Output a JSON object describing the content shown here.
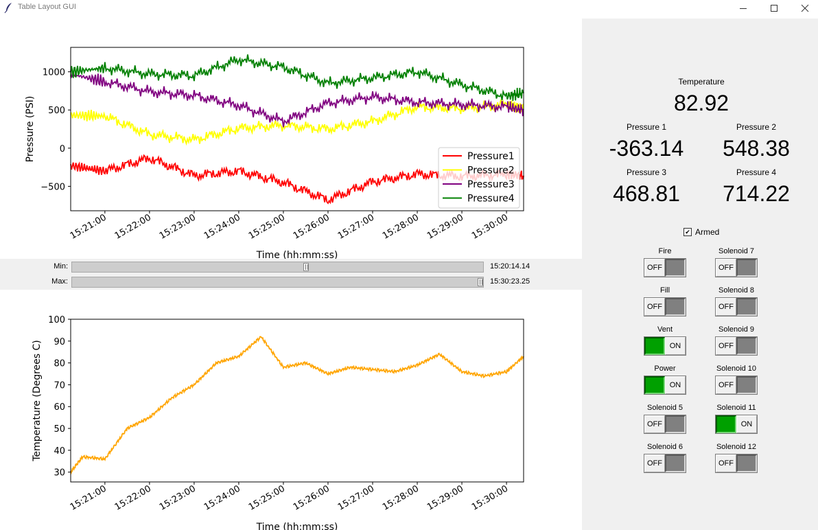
{
  "window": {
    "title": "Table Layout GUI"
  },
  "pressure_chart": {
    "chart_data": {
      "type": "line",
      "xlabel": "Time (hh:mm:ss)",
      "ylabel": "Pressure (PSI)",
      "xlim": [
        "15:20:14",
        "15:30:23"
      ],
      "ylim": [
        -820,
        1320
      ],
      "x_ticks": [
        "15:21:00",
        "15:22:00",
        "15:23:00",
        "15:24:00",
        "15:25:00",
        "15:26:00",
        "15:27:00",
        "15:28:00",
        "15:29:00",
        "15:30:00"
      ],
      "y_ticks": [
        1000,
        500,
        0,
        -500
      ],
      "grid": false,
      "legend": "lower-right",
      "x": [
        "15:20:14",
        "15:21:00",
        "15:22:00",
        "15:23:00",
        "15:24:00",
        "15:25:00",
        "15:26:00",
        "15:27:00",
        "15:28:00",
        "15:29:00",
        "15:30:00",
        "15:30:23"
      ],
      "series": [
        {
          "name": "Pressure1",
          "color": "#ff0000",
          "values": [
            -230,
            -300,
            -130,
            -360,
            -300,
            -450,
            -680,
            -440,
            -340,
            -370,
            -340,
            -360
          ]
        },
        {
          "name": "Pressure2",
          "color": "#ffff00",
          "values": [
            430,
            420,
            180,
            110,
            260,
            300,
            250,
            350,
            540,
            520,
            570,
            520
          ]
        },
        {
          "name": "Pressure3",
          "color": "#800080",
          "values": [
            970,
            870,
            740,
            690,
            560,
            350,
            590,
            670,
            600,
            570,
            540,
            500
          ]
        },
        {
          "name": "Pressure4",
          "color": "#008000",
          "values": [
            1000,
            1050,
            970,
            950,
            1160,
            1060,
            850,
            920,
            1000,
            830,
            680,
            720
          ]
        }
      ]
    }
  },
  "temperature_chart": {
    "chart_data": {
      "type": "line",
      "xlabel": "Time (hh:mm:ss)",
      "ylabel": "Temperature (Degrees C)",
      "xlim": [
        "15:20:14",
        "15:30:23"
      ],
      "ylim": [
        25.5,
        100
      ],
      "x_ticks": [
        "15:21:00",
        "15:22:00",
        "15:23:00",
        "15:24:00",
        "15:25:00",
        "15:26:00",
        "15:27:00",
        "15:28:00",
        "15:29:00",
        "15:30:00"
      ],
      "y_ticks": [
        100,
        90,
        80,
        70,
        60,
        50,
        40,
        30
      ],
      "grid": false,
      "x": [
        "15:20:14",
        "15:20:30",
        "15:21:00",
        "15:21:30",
        "15:22:00",
        "15:22:30",
        "15:23:00",
        "15:23:30",
        "15:24:00",
        "15:24:30",
        "15:25:00",
        "15:25:30",
        "15:26:00",
        "15:26:30",
        "15:27:00",
        "15:27:30",
        "15:28:00",
        "15:28:30",
        "15:29:00",
        "15:29:30",
        "15:30:00",
        "15:30:23"
      ],
      "series": [
        {
          "name": "Temperature",
          "color": "#ffa500",
          "values": [
            30,
            37,
            36,
            50,
            55,
            64,
            70,
            80,
            83,
            92,
            78,
            80,
            75,
            78,
            77,
            76,
            79,
            84,
            76,
            74,
            76,
            83
          ]
        }
      ]
    }
  },
  "sliders": {
    "min": {
      "label": "Min:",
      "value": "15:20:14.14",
      "position": 0.57
    },
    "max": {
      "label": "Max:",
      "value": "15:30:23.25",
      "position": 1.0
    }
  },
  "readouts": {
    "temperature": {
      "label": "Temperature",
      "value": "82.92"
    },
    "pressure1": {
      "label": "Pressure 1",
      "value": "-363.14"
    },
    "pressure2": {
      "label": "Pressure 2",
      "value": "548.38"
    },
    "pressure3": {
      "label": "Pressure 3",
      "value": "468.81"
    },
    "pressure4": {
      "label": "Pressure 4",
      "value": "714.22"
    }
  },
  "armed": {
    "label": "Armed",
    "checked": true
  },
  "switches": [
    {
      "label": "Fire",
      "state": "OFF"
    },
    {
      "label": "Fill",
      "state": "OFF"
    },
    {
      "label": "Vent",
      "state": "ON"
    },
    {
      "label": "Power",
      "state": "ON"
    },
    {
      "label": "Solenoid 5",
      "state": "OFF"
    },
    {
      "label": "Solenoid 6",
      "state": "OFF"
    },
    {
      "label": "Solenoid 7",
      "state": "OFF"
    },
    {
      "label": "Solenoid 8",
      "state": "OFF"
    },
    {
      "label": "Solenoid 9",
      "state": "OFF"
    },
    {
      "label": "Solenoid 10",
      "state": "OFF"
    },
    {
      "label": "Solenoid 11",
      "state": "ON"
    },
    {
      "label": "Solenoid 12",
      "state": "OFF"
    }
  ],
  "colors": {
    "on": "#00a000",
    "off": "#808080",
    "panel": "#f0f0f0"
  }
}
